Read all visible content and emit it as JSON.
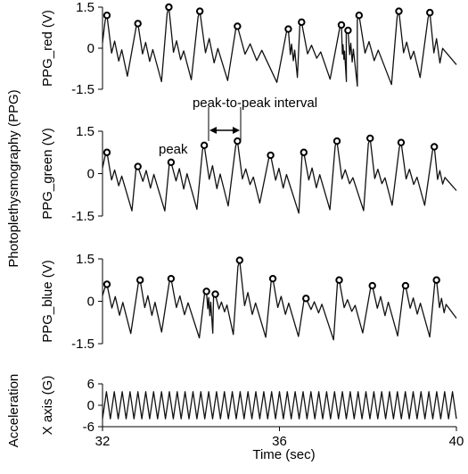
{
  "chart_data": [
    {
      "type": "line",
      "id": "red",
      "ylabel": "PPG_red (V)",
      "ylim": [
        -1.5,
        1.5
      ],
      "yticks": [
        "1.5",
        "0",
        "-1.5"
      ],
      "xlim": [
        32,
        40
      ],
      "series": [
        {
          "peaks_x": [
            32.1,
            32.8,
            33.5,
            34.2,
            35.05,
            36.2,
            36.5,
            37.4,
            37.55,
            37.8,
            38.7,
            39.4
          ],
          "peaks_y": [
            1.2,
            0.9,
            1.5,
            1.35,
            0.8,
            0.7,
            0.95,
            0.85,
            0.65,
            1.2,
            1.35,
            1.3
          ]
        }
      ]
    },
    {
      "type": "line",
      "id": "green",
      "ylabel": "PPG_green (V)",
      "ylim": [
        -1.5,
        1.5
      ],
      "yticks": [
        "1.5",
        "0",
        "-1.5"
      ],
      "xlim": [
        32,
        40
      ],
      "series": [
        {
          "peaks_x": [
            32.1,
            32.8,
            33.55,
            34.3,
            35.05,
            35.8,
            36.55,
            37.3,
            38.05,
            38.75,
            39.5
          ],
          "peaks_y": [
            0.75,
            0.25,
            0.4,
            1.0,
            1.15,
            0.65,
            0.75,
            1.15,
            1.25,
            1.1,
            0.95
          ]
        }
      ]
    },
    {
      "type": "line",
      "id": "blue",
      "ylabel": "PPG_blue (V)",
      "ylim": [
        -1.5,
        1.5
      ],
      "yticks": [
        "1.5",
        "0",
        "-1.5"
      ],
      "xlim": [
        32,
        40
      ],
      "series": [
        {
          "peaks_x": [
            32.1,
            32.85,
            33.55,
            34.35,
            34.55,
            35.1,
            35.85,
            36.6,
            37.35,
            38.1,
            38.85,
            39.55
          ],
          "peaks_y": [
            0.6,
            0.75,
            0.8,
            0.35,
            0.25,
            1.45,
            0.8,
            0.1,
            0.75,
            0.55,
            0.55,
            0.75
          ]
        }
      ]
    },
    {
      "type": "line",
      "id": "accel",
      "ylabel": "X axis (G)",
      "ylim": [
        -6,
        6
      ],
      "yticks": [
        "6",
        "0",
        "-6"
      ],
      "xlim": [
        32,
        40
      ],
      "xticks": [
        32,
        36,
        40
      ],
      "xlabel": "Time (sec)",
      "series": [
        {
          "cycles": 45,
          "amplitude": 3.8
        }
      ]
    }
  ],
  "group_labels": {
    "ppg": "Photoplethysmography (PPG)",
    "accel": "Acceleration"
  },
  "annotations": {
    "interval": "peak-to-peak interval",
    "peak": "peak"
  }
}
